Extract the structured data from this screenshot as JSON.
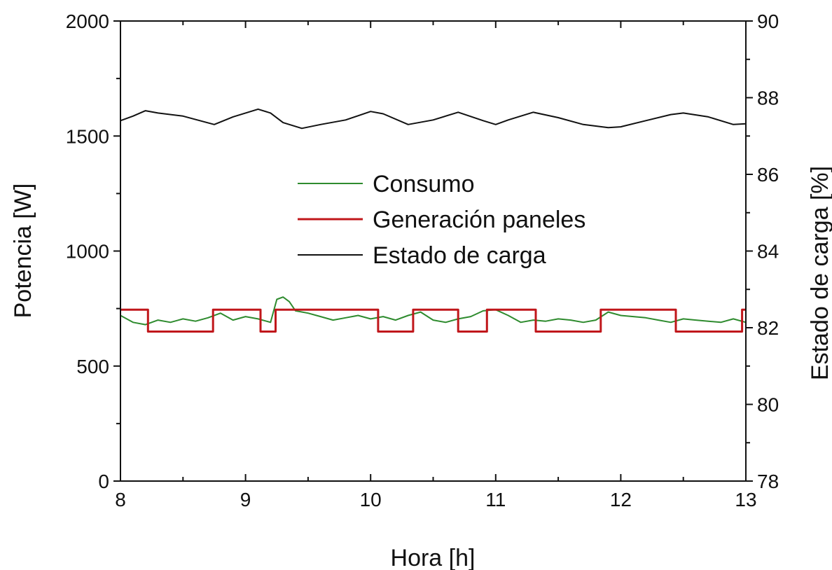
{
  "chart_data": {
    "type": "line",
    "title": "",
    "xlabel": "Hora [h]",
    "ylabel": "Potencia [W]",
    "y2label": "Estado de carga [%]",
    "xlim": [
      8,
      13
    ],
    "ylim": [
      0,
      2000
    ],
    "y2lim": [
      78,
      90
    ],
    "xticks": [
      8,
      9,
      10,
      11,
      12,
      13
    ],
    "yticks": [
      0,
      500,
      1000,
      1500,
      2000
    ],
    "y2ticks": [
      78,
      80,
      82,
      84,
      86,
      88,
      90
    ],
    "grid": false,
    "legend_position": "center",
    "series": [
      {
        "name": "Consumo",
        "axis": "left",
        "color": "#2e8b2e",
        "x": [
          8.0,
          8.1,
          8.2,
          8.3,
          8.4,
          8.5,
          8.6,
          8.7,
          8.8,
          8.9,
          9.0,
          9.1,
          9.2,
          9.25,
          9.3,
          9.35,
          9.4,
          9.5,
          9.6,
          9.7,
          9.8,
          9.9,
          10.0,
          10.1,
          10.2,
          10.3,
          10.4,
          10.5,
          10.6,
          10.7,
          10.8,
          10.9,
          11.0,
          11.1,
          11.2,
          11.3,
          11.4,
          11.5,
          11.6,
          11.7,
          11.8,
          11.9,
          12.0,
          12.1,
          12.2,
          12.3,
          12.4,
          12.5,
          12.6,
          12.7,
          12.8,
          12.9,
          13.0
        ],
        "y": [
          720,
          690,
          680,
          700,
          690,
          705,
          695,
          710,
          730,
          700,
          715,
          705,
          690,
          790,
          800,
          780,
          740,
          730,
          715,
          700,
          710,
          720,
          705,
          715,
          700,
          720,
          735,
          700,
          690,
          705,
          715,
          740,
          745,
          720,
          690,
          700,
          695,
          705,
          700,
          690,
          700,
          735,
          720,
          715,
          710,
          700,
          690,
          705,
          700,
          695,
          690,
          705,
          690
        ]
      },
      {
        "name": "Generación paneles",
        "axis": "left",
        "color": "#c0171b",
        "x": [
          8.0,
          8.22,
          8.22,
          8.74,
          8.74,
          9.12,
          9.12,
          9.24,
          9.24,
          10.06,
          10.06,
          10.34,
          10.34,
          10.7,
          10.7,
          10.93,
          10.93,
          11.32,
          11.32,
          11.84,
          11.84,
          12.44,
          12.44,
          12.97,
          12.97,
          13.0
        ],
        "y": [
          745,
          745,
          650,
          650,
          745,
          745,
          650,
          650,
          745,
          745,
          650,
          650,
          745,
          745,
          650,
          650,
          745,
          745,
          650,
          650,
          745,
          745,
          650,
          650,
          745,
          745
        ]
      },
      {
        "name": "Estado de carga",
        "axis": "right",
        "color": "#111111",
        "x": [
          8.0,
          8.1,
          8.2,
          8.3,
          8.5,
          8.75,
          8.9,
          9.1,
          9.2,
          9.3,
          9.45,
          9.6,
          9.8,
          10.0,
          10.1,
          10.3,
          10.5,
          10.7,
          10.9,
          11.0,
          11.1,
          11.3,
          11.5,
          11.7,
          11.9,
          12.0,
          12.2,
          12.4,
          12.5,
          12.7,
          12.9,
          13.0
        ],
        "y": [
          87.4,
          87.52,
          87.66,
          87.6,
          87.52,
          87.3,
          87.5,
          87.7,
          87.6,
          87.35,
          87.2,
          87.3,
          87.42,
          87.64,
          87.58,
          87.3,
          87.42,
          87.62,
          87.4,
          87.3,
          87.42,
          87.62,
          87.48,
          87.3,
          87.22,
          87.24,
          87.4,
          87.56,
          87.6,
          87.5,
          87.3,
          87.32
        ]
      }
    ]
  }
}
